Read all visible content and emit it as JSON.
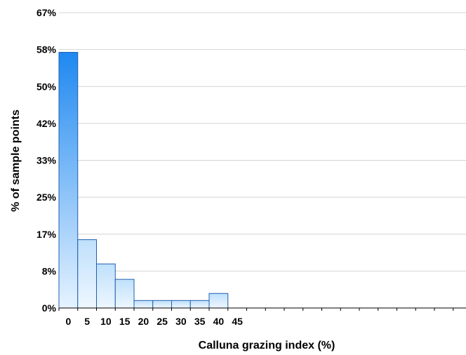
{
  "chart_data": {
    "type": "bar",
    "title": "",
    "xlabel": "Calluna grazing index (%)",
    "ylabel": "% of sample points",
    "categories": [
      "0",
      "5",
      "10",
      "15",
      "20",
      "25",
      "30",
      "35",
      "40",
      "45"
    ],
    "values": [
      58,
      15.5,
      10,
      6.5,
      1.7,
      1.7,
      1.7,
      1.7,
      3.3,
      0
    ],
    "y_tick_labels": [
      "0%",
      "8%",
      "17%",
      "25%",
      "33%",
      "42%",
      "50%",
      "58%",
      "67%"
    ],
    "ylim": [
      0,
      67
    ],
    "grid": true,
    "legend": "none",
    "colors": {
      "bar_top_tall": "#1e88f0",
      "bar_bottom": "#e6f3ff",
      "bar_light": "#bfe0fb",
      "bar_stroke": "#1f5fb0",
      "grid": "#d4d4d4",
      "axis": "#000000"
    }
  }
}
